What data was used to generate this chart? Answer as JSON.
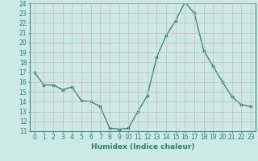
{
  "xlabel": "Humidex (Indice chaleur)",
  "x": [
    0,
    1,
    2,
    3,
    4,
    5,
    6,
    7,
    8,
    9,
    10,
    11,
    12,
    13,
    14,
    15,
    16,
    17,
    18,
    19,
    20,
    21,
    22,
    23
  ],
  "y": [
    17.0,
    15.7,
    15.7,
    15.2,
    15.5,
    14.1,
    14.0,
    13.5,
    11.3,
    11.2,
    11.3,
    13.0,
    14.6,
    18.5,
    20.7,
    22.2,
    24.1,
    23.0,
    19.2,
    17.6,
    16.0,
    14.5,
    13.7,
    13.5
  ],
  "line_color": "#2e7d6e",
  "marker": "o",
  "marker_size": 2.2,
  "bg_color": "#cce9e4",
  "grid_color": "#b0d0cc",
  "ylim": [
    11,
    24
  ],
  "yticks": [
    11,
    12,
    13,
    14,
    15,
    16,
    17,
    18,
    19,
    20,
    21,
    22,
    23,
    24
  ],
  "xticks": [
    0,
    1,
    2,
    3,
    4,
    5,
    6,
    7,
    8,
    9,
    10,
    11,
    12,
    13,
    14,
    15,
    16,
    17,
    18,
    19,
    20,
    21,
    22,
    23
  ],
  "tick_color": "#2e7d6e",
  "label_color": "#2e7d6e",
  "xlabel_fontsize": 6.5,
  "tick_fontsize": 5.5
}
